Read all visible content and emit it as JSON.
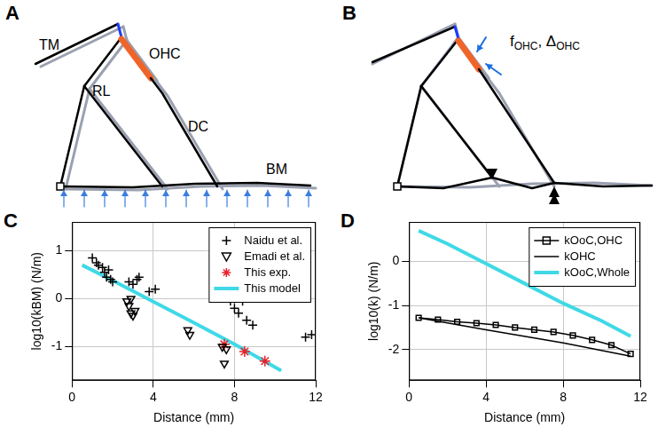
{
  "diagrams": [
    {
      "panel": "A",
      "labels": [
        "TM",
        "RL",
        "OHC",
        "DC",
        "BM"
      ]
    },
    {
      "panel": "B",
      "annotation": [
        {
          "text": "f"
        },
        {
          "text": "OHC",
          "sub": true
        },
        {
          "text": ", Δ"
        },
        {
          "text": "OHC",
          "sub": true
        }
      ]
    }
  ],
  "chart_data": [
    {
      "panel": "C",
      "type": "scatter",
      "x_label": "Distance (mm)",
      "y_label": "log10(kBM) (N/m)",
      "xlim": [
        0,
        12
      ],
      "xticks": [
        0,
        4,
        8,
        12
      ],
      "ylim": [
        -1.7,
        1.6
      ],
      "yticks": [
        -1,
        0,
        1
      ],
      "grid": true,
      "legend": "upper right",
      "series": [
        {
          "name": "Naidu et al.",
          "type": "scatter",
          "marker": "plus",
          "color": "#000000",
          "x": [
            1.0,
            1.2,
            1.3,
            1.5,
            1.6,
            1.7,
            1.8,
            1.9,
            2.0,
            2.8,
            3.0,
            3.2,
            3.3,
            3.8,
            4.1,
            7.8,
            8.0,
            8.0,
            8.2,
            8.4,
            8.6,
            8.9,
            11.5,
            11.8
          ],
          "values": [
            0.85,
            0.75,
            0.7,
            0.65,
            0.55,
            0.45,
            0.6,
            0.4,
            0.35,
            0.35,
            0.3,
            0.4,
            0.45,
            0.15,
            0.2,
            -0.05,
            0.0,
            -0.2,
            -0.3,
            -0.05,
            -0.45,
            -0.55,
            -0.8,
            -0.75
          ]
        },
        {
          "name": "Emadi et al.",
          "type": "scatter",
          "marker": "triangle_down",
          "color": "#000000",
          "x": [
            2.7,
            2.8,
            2.9,
            2.9,
            3.0,
            3.1,
            5.7,
            5.8,
            7.4,
            7.5,
            7.6
          ],
          "values": [
            -0.05,
            -0.15,
            0.0,
            -0.3,
            -0.35,
            -0.25,
            -0.65,
            -0.75,
            -1.0,
            -1.35,
            -1.05
          ]
        },
        {
          "name": "This exp.",
          "type": "scatter",
          "marker": "star",
          "color": "#e8202a",
          "x": [
            7.5,
            8.5,
            9.5
          ],
          "values": [
            -0.95,
            -1.1,
            -1.3
          ]
        },
        {
          "name": "This model",
          "type": "line",
          "marker": "none",
          "line_style": "solid",
          "color": "#3fd9e6",
          "x": [
            0.5,
            2,
            4,
            6,
            8,
            10.3
          ],
          "values": [
            0.7,
            0.38,
            -0.06,
            -0.5,
            -0.95,
            -1.5
          ]
        }
      ]
    },
    {
      "panel": "D",
      "type": "line",
      "x_label": "Distance (mm)",
      "y_label": "log10(k) (N/m)",
      "xlim": [
        0,
        12
      ],
      "xticks": [
        0,
        4,
        8,
        12
      ],
      "ylim": [
        -2.7,
        0.9
      ],
      "yticks": [
        -2,
        -1,
        0
      ],
      "grid": true,
      "legend": "upper right",
      "series": [
        {
          "name": "kOoC,OHC",
          "type": "line",
          "marker": "square",
          "line_style": "solid",
          "color": "#000000",
          "x": [
            0.5,
            1.5,
            2.5,
            3.5,
            4.5,
            5.5,
            6.5,
            7.5,
            8.5,
            9.5,
            10.5,
            11.5
          ],
          "values": [
            -1.28,
            -1.32,
            -1.37,
            -1.4,
            -1.44,
            -1.5,
            -1.55,
            -1.6,
            -1.68,
            -1.78,
            -1.9,
            -2.1
          ]
        },
        {
          "name": "kOHC",
          "type": "line",
          "marker": "none",
          "line_style": "solid",
          "color": "#000000",
          "x": [
            0.5,
            4,
            8,
            11.5
          ],
          "values": [
            -1.28,
            -1.55,
            -1.85,
            -2.15
          ]
        },
        {
          "name": "kOoC,Whole",
          "type": "line",
          "marker": "none",
          "line_style": "solid",
          "color": "#3fd9e6",
          "x": [
            0.5,
            2,
            4,
            6,
            8,
            10,
            11.5
          ],
          "values": [
            0.7,
            0.4,
            -0.05,
            -0.5,
            -0.95,
            -1.35,
            -1.7
          ]
        }
      ]
    }
  ]
}
